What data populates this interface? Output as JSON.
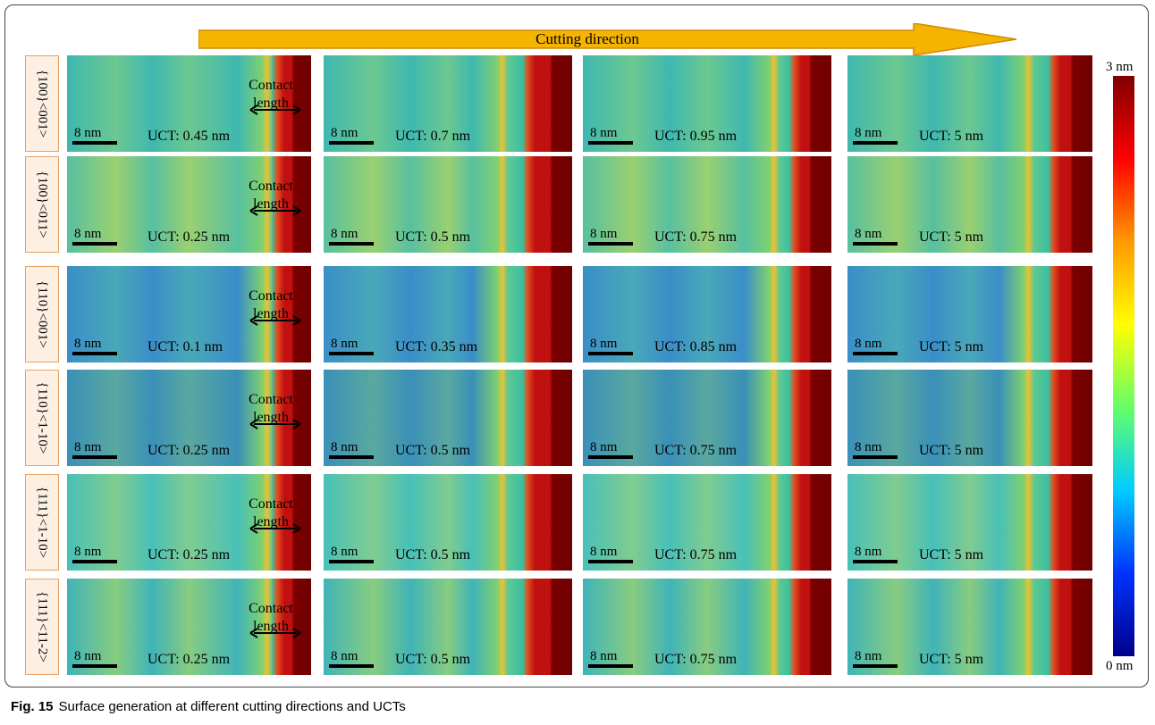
{
  "arrow_label": "Cutting direction",
  "colorbar": {
    "max_label": "3 nm",
    "min_label": "0 nm"
  },
  "rows": [
    {
      "label": "{100}<001>",
      "contact": "Contact length",
      "panels": [
        {
          "scale": "8 nm",
          "uct": "UCT: 0.45 nm"
        },
        {
          "scale": "8 nm",
          "uct": "UCT: 0.7 nm"
        },
        {
          "scale": "8 nm",
          "uct": "UCT: 0.95 nm"
        },
        {
          "scale": "8 nm",
          "uct": "UCT: 5 nm"
        }
      ]
    },
    {
      "label": "{100}<011>",
      "contact": "Contact length",
      "panels": [
        {
          "scale": "8 nm",
          "uct": "UCT: 0.25 nm"
        },
        {
          "scale": "8 nm",
          "uct": "UCT: 0.5 nm"
        },
        {
          "scale": "8 nm",
          "uct": "UCT: 0.75 nm"
        },
        {
          "scale": "8 nm",
          "uct": "UCT: 5 nm"
        }
      ]
    },
    {
      "label": "{110}<001>",
      "contact": "Contact length",
      "panels": [
        {
          "scale": "8 nm",
          "uct": "UCT: 0.1 nm"
        },
        {
          "scale": "8 nm",
          "uct": "UCT: 0.35 nm"
        },
        {
          "scale": "8 nm",
          "uct": "UCT: 0.85 nm"
        },
        {
          "scale": "8 nm",
          "uct": "UCT: 5 nm"
        }
      ]
    },
    {
      "label": "{110}<1-10>",
      "contact": "Contact length",
      "panels": [
        {
          "scale": "8 nm",
          "uct": "UCT: 0.25 nm"
        },
        {
          "scale": "8 nm",
          "uct": "UCT: 0.5 nm"
        },
        {
          "scale": "8 nm",
          "uct": "UCT: 0.75 nm"
        },
        {
          "scale": "8 nm",
          "uct": "UCT: 5 nm"
        }
      ]
    },
    {
      "label": "{111}<1-10>",
      "contact": "Contact length",
      "panels": [
        {
          "scale": "8 nm",
          "uct": "UCT: 0.25 nm"
        },
        {
          "scale": "8 nm",
          "uct": "UCT: 0.5 nm"
        },
        {
          "scale": "8 nm",
          "uct": "UCT: 0.75 nm"
        },
        {
          "scale": "8 nm",
          "uct": "UCT: 5 nm"
        }
      ]
    },
    {
      "label": "{111}<11-2>",
      "contact": "Contact length",
      "panels": [
        {
          "scale": "8 nm",
          "uct": "UCT: 0.25 nm"
        },
        {
          "scale": "8 nm",
          "uct": "UCT: 0.5 nm"
        },
        {
          "scale": "8 nm",
          "uct": "UCT: 0.75 nm"
        },
        {
          "scale": "8 nm",
          "uct": "UCT: 5 nm"
        }
      ]
    }
  ],
  "caption": {
    "label": "Fig. 15",
    "text": "Surface generation at different cutting directions and UCTs"
  }
}
